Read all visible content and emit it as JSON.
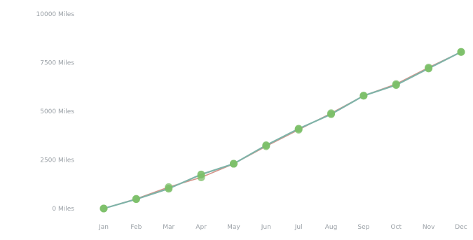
{
  "chart_data": {
    "type": "line",
    "title": "",
    "xlabel": "",
    "ylabel": "",
    "categories": [
      "Jan",
      "Feb",
      "Mar",
      "Apr",
      "May",
      "Jun",
      "Jul",
      "Aug",
      "Sep",
      "Oct",
      "Nov",
      "Dec"
    ],
    "ylim": [
      0,
      10000
    ],
    "y_ticks": [
      0,
      2500,
      5000,
      7500,
      10000
    ],
    "y_tick_labels": [
      "0 Miles",
      "2500 Miles",
      "5000 Miles",
      "7500 Miles",
      "10000 Miles"
    ],
    "grid": false,
    "legend": "none",
    "series": [
      {
        "values": [
          0,
          500,
          1100,
          1600,
          2300,
          3200,
          4050,
          4900,
          5800,
          6400,
          7250,
          8050
        ],
        "color": "#d6958b"
      },
      {
        "values": [
          0,
          480,
          1020,
          1750,
          2300,
          3250,
          4100,
          4850,
          5800,
          6350,
          7200,
          8050
        ],
        "color": "#7fb3a8"
      }
    ],
    "marker_color": "#7cbf68"
  }
}
